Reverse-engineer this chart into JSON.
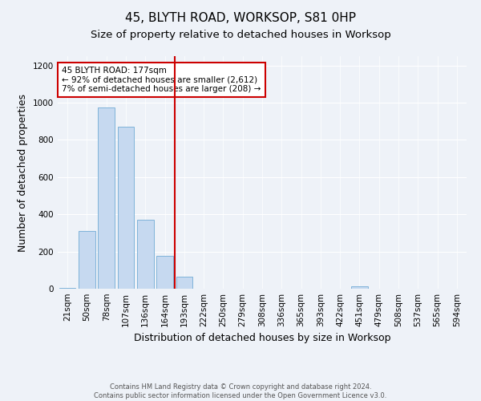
{
  "title": "45, BLYTH ROAD, WORKSOP, S81 0HP",
  "subtitle": "Size of property relative to detached houses in Worksop",
  "xlabel": "Distribution of detached houses by size in Worksop",
  "ylabel": "Number of detached properties",
  "bar_labels": [
    "21sqm",
    "50sqm",
    "78sqm",
    "107sqm",
    "136sqm",
    "164sqm",
    "193sqm",
    "222sqm",
    "250sqm",
    "279sqm",
    "308sqm",
    "336sqm",
    "365sqm",
    "393sqm",
    "422sqm",
    "451sqm",
    "479sqm",
    "508sqm",
    "537sqm",
    "565sqm",
    "594sqm"
  ],
  "bar_values": [
    5,
    310,
    975,
    870,
    370,
    175,
    65,
    0,
    0,
    0,
    0,
    0,
    0,
    0,
    0,
    15,
    0,
    0,
    0,
    0,
    0
  ],
  "bar_color": "#c6d9f0",
  "bar_edge_color": "#7fb3d9",
  "vline_color": "#cc0000",
  "annotation_text": "45 BLYTH ROAD: 177sqm\n← 92% of detached houses are smaller (2,612)\n7% of semi-detached houses are larger (208) →",
  "annotation_box_color": "#ffffff",
  "annotation_box_edgecolor": "#cc0000",
  "ylim": [
    0,
    1250
  ],
  "yticks": [
    0,
    200,
    400,
    600,
    800,
    1000,
    1200
  ],
  "footer_text": "Contains HM Land Registry data © Crown copyright and database right 2024.\nContains public sector information licensed under the Open Government Licence v3.0.",
  "bg_color": "#eef2f8",
  "title_fontsize": 11,
  "axis_label_fontsize": 9,
  "tick_fontsize": 7.5,
  "footer_fontsize": 6.0
}
